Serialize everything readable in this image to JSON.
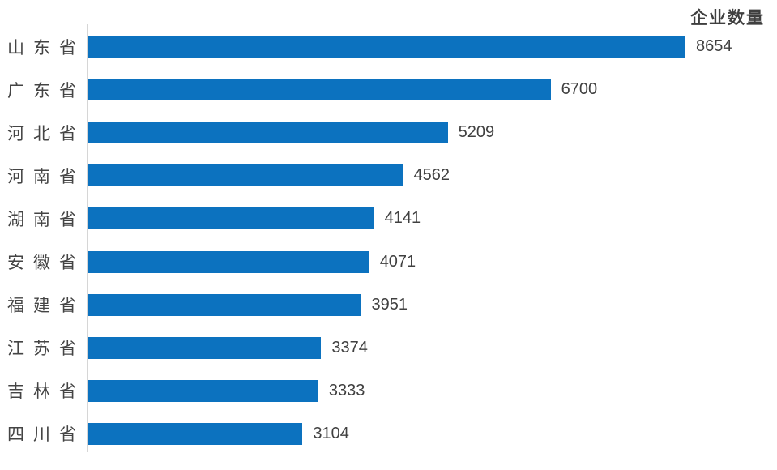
{
  "chart_data": {
    "type": "bar",
    "orientation": "horizontal",
    "title": "企业数量",
    "categories": [
      "山东省",
      "广东省",
      "河北省",
      "河南省",
      "湖南省",
      "安徽省",
      "福建省",
      "江苏省",
      "吉林省",
      "四川省"
    ],
    "values": [
      8654,
      6700,
      5209,
      4562,
      4141,
      4071,
      3951,
      3374,
      3333,
      3104
    ],
    "value_labels": [
      "8654",
      "6700",
      "5209",
      "4562",
      "4141",
      "4071",
      "3951",
      "3374",
      "3333",
      "3104"
    ],
    "xlim": [
      0,
      8654
    ],
    "bar_color": "#0c72bf",
    "axis_line_color": "#d6d6d6",
    "text_color": "#404040",
    "grid": "off",
    "legend": "none",
    "value_labels_position": "outside-end",
    "title_position": "top-right"
  }
}
